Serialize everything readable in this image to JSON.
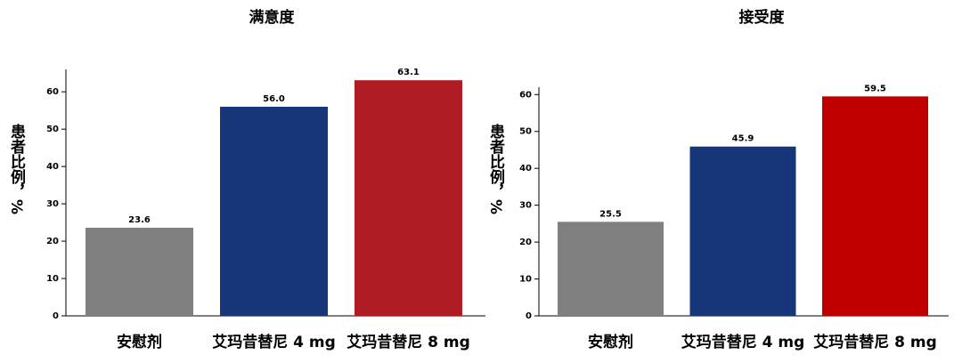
{
  "chart_data": [
    {
      "type": "bar",
      "title": "满意度",
      "y_label": "患者比例，%",
      "categories": [
        "安慰剂",
        "艾玛昔替尼  4 mg",
        "艾玛昔替尼  8 mg"
      ],
      "values": [
        23.6,
        56.0,
        63.1
      ],
      "value_labels": [
        "23.6",
        "56.0",
        "63.1"
      ],
      "colors": [
        "#808080",
        "#17377a",
        "#b01c23"
      ],
      "ylim": [
        0,
        66
      ],
      "yticks": [
        0,
        10,
        20,
        30,
        40,
        50,
        60
      ]
    },
    {
      "type": "bar",
      "title": "接受度",
      "y_label": "患者比例，%",
      "categories": [
        "安慰剂",
        "艾玛昔替尼  4 mg",
        "艾玛昔替尼  8 mg"
      ],
      "values": [
        25.5,
        45.9,
        59.5
      ],
      "value_labels": [
        "25.5",
        "45.9",
        "59.5"
      ],
      "colors": [
        "#808080",
        "#17377a",
        "#c00000"
      ],
      "ylim": [
        0,
        62
      ],
      "yticks": [
        0,
        10,
        20,
        30,
        40,
        50,
        60
      ]
    }
  ]
}
